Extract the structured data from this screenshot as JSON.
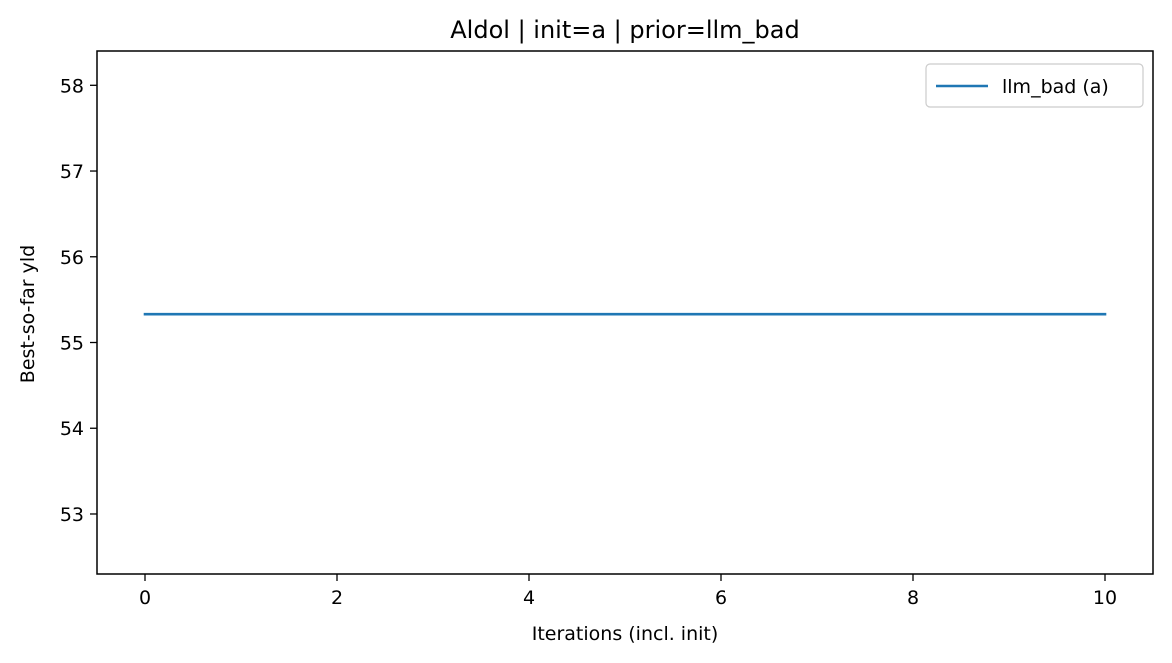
{
  "chart_data": {
    "type": "line",
    "title": "Aldol | init=a | prior=llm_bad",
    "xlabel": "Iterations (incl. init)",
    "ylabel": "Best-so-far yld",
    "xlim": [
      -0.5,
      10.5
    ],
    "ylim": [
      52.3,
      58.4
    ],
    "xticks": [
      0,
      2,
      4,
      6,
      8,
      10
    ],
    "yticks": [
      53,
      54,
      55,
      56,
      57,
      58
    ],
    "grid": false,
    "legend_position": "top-right",
    "series": [
      {
        "name": "llm_bad (a)",
        "color": "#1f77b4",
        "x": [
          0,
          1,
          2,
          3,
          4,
          5,
          6,
          7,
          8,
          9,
          10
        ],
        "y": [
          55.33,
          55.33,
          55.33,
          55.33,
          55.33,
          55.33,
          55.33,
          55.33,
          55.33,
          55.33,
          55.33
        ]
      }
    ]
  }
}
